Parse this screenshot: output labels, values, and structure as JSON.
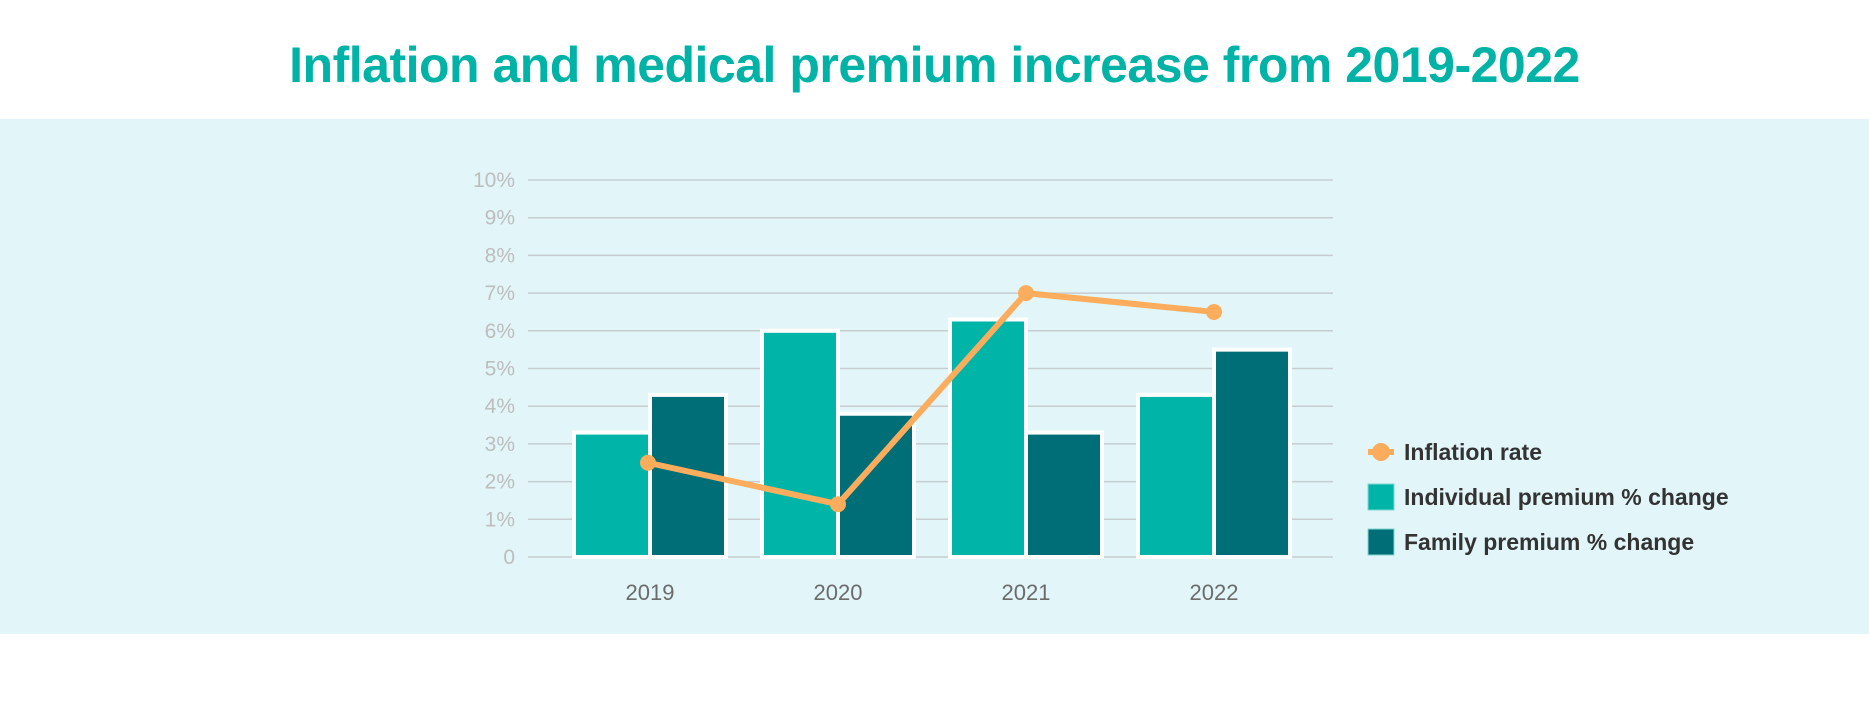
{
  "chart_data": {
    "type": "bar",
    "title": "Inflation and medical premium increase from 2019-2022",
    "xlabel": "",
    "ylabel": "",
    "categories": [
      "2019",
      "2020",
      "2021",
      "2022"
    ],
    "ylim": [
      0,
      10
    ],
    "yticks": [
      "0",
      "1%",
      "2%",
      "3%",
      "4%",
      "5%",
      "6%",
      "7%",
      "8%",
      "9%",
      "10%"
    ],
    "grid": true,
    "legend_position": "right",
    "series": [
      {
        "name": "Inflation rate",
        "kind": "line",
        "color": "#fbad5d",
        "values": [
          2.5,
          1.4,
          7.0,
          6.5
        ]
      },
      {
        "name": "Individual premium % change",
        "kind": "bar",
        "color": "#00b5a8",
        "values": [
          3.3,
          6.0,
          6.3,
          4.3
        ]
      },
      {
        "name": "Family premium % change",
        "kind": "bar",
        "color": "#006e76",
        "values": [
          4.3,
          3.8,
          3.3,
          5.5
        ]
      }
    ]
  }
}
